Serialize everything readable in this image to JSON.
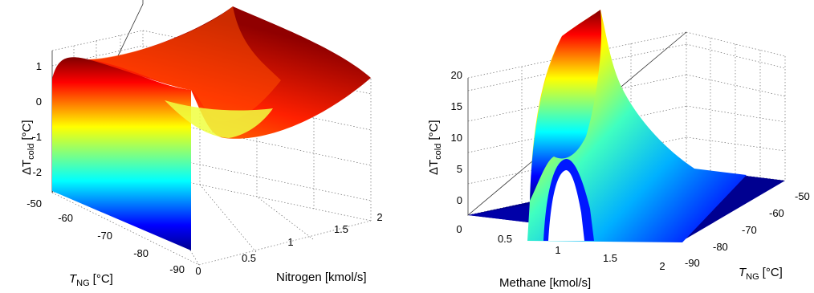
{
  "chart_data": [
    {
      "type": "surface",
      "zlabel_prefix": "ΔT",
      "zlabel_sub": "cold",
      "zlabel_unit": "[°C]",
      "xlabel": "Nitrogen [kmol/s]",
      "ylabel_main": "T",
      "ylabel_sub": "NG",
      "ylabel_unit": "[°C]",
      "x_range": [
        0,
        2
      ],
      "y_range": [
        -90,
        -50
      ],
      "z_range": [
        -2.6,
        1.3
      ],
      "x_ticks": [
        "0",
        "0.5",
        "1",
        "1.5",
        "2"
      ],
      "y_ticks": [
        "-50",
        "-60",
        "-70",
        "-80",
        "-90"
      ],
      "z_ticks": [
        "1",
        "0",
        "-1",
        "-2"
      ],
      "colormap": "jet",
      "grid": true,
      "description_points": [
        {
          "x": 0,
          "y": -50,
          "z": -2.5
        },
        {
          "x": 0,
          "y": -90,
          "z": -2.5
        },
        {
          "x": 0.1,
          "y": -50,
          "z": 1.2
        },
        {
          "x": 0.1,
          "y": -90,
          "z": 1.0
        },
        {
          "x": 1.0,
          "y": -70,
          "z": 0.0
        },
        {
          "x": 2.0,
          "y": -50,
          "z": 1.3
        },
        {
          "x": 2.0,
          "y": -90,
          "z": 0.9
        }
      ]
    },
    {
      "type": "surface",
      "zlabel_prefix": "ΔT",
      "zlabel_sub": "cold",
      "zlabel_unit": "[°C]",
      "xlabel": "Methane [kmol/s]",
      "ylabel_main": "T",
      "ylabel_sub": "NG",
      "ylabel_unit": "[°C]",
      "x_range": [
        0,
        2
      ],
      "y_range": [
        -90,
        -50
      ],
      "z_range": [
        -2.5,
        23
      ],
      "x_ticks": [
        "0",
        "0.5",
        "1",
        "1.5",
        "2"
      ],
      "y_ticks": [
        "-50",
        "-60",
        "-70",
        "-80",
        "-90"
      ],
      "z_ticks": [
        "20",
        "15",
        "10",
        "5",
        "0"
      ],
      "colormap": "jet",
      "grid": true,
      "description_points": [
        {
          "x": 0.0,
          "y": -70,
          "z": -1.5
        },
        {
          "x": 0.4,
          "y": -70,
          "z": -1.5
        },
        {
          "x": 0.45,
          "y": -50,
          "z": 22
        },
        {
          "x": 0.45,
          "y": -90,
          "z": 6
        },
        {
          "x": 1.0,
          "y": -50,
          "z": 4
        },
        {
          "x": 2.0,
          "y": -50,
          "z": -1.5
        }
      ]
    }
  ]
}
